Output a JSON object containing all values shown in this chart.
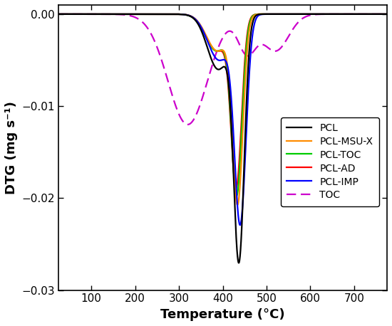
{
  "title": "",
  "xlabel": "Temperature (°C)",
  "ylabel": "DTG (mg s⁻¹)",
  "xlim": [
    25,
    775
  ],
  "ylim": [
    -0.03,
    0.001
  ],
  "yticks": [
    -0.03,
    -0.02,
    -0.01,
    0.0
  ],
  "xticks": [
    100,
    200,
    300,
    400,
    500,
    600,
    700
  ],
  "legend": [
    "PCL",
    "PCL-MSU-X",
    "PCL-TOC",
    "PCL-AD",
    "PCL-IMP",
    "TOC"
  ],
  "colors": {
    "PCL": "#000000",
    "PCL-MSU-X": "#FF8C00",
    "PCL-TOC": "#00CC00",
    "PCL-AD": "#FF0000",
    "PCL-IMP": "#0000FF",
    "TOC": "#CC00CC"
  },
  "background_color": "#ffffff"
}
